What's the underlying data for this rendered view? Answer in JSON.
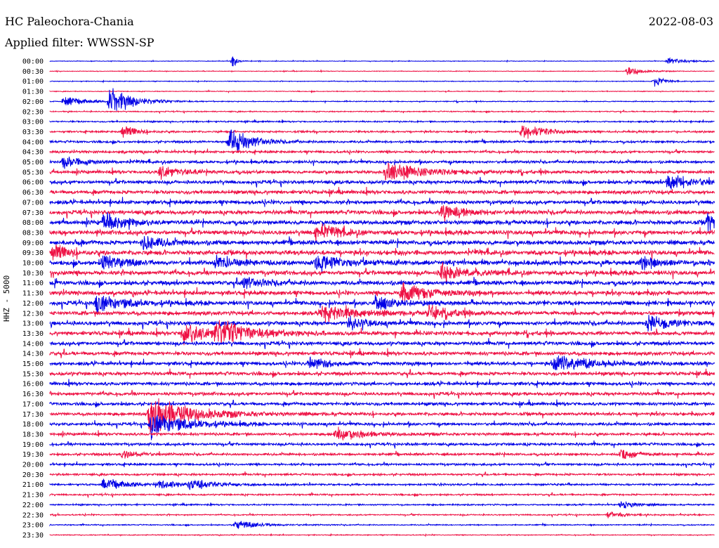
{
  "header": {
    "station": "HC Paleochora-Chania",
    "filter": "Applied filter: WWSSN-SP",
    "date": "2022-08-03",
    "channel_label": "HHZ - 5000"
  },
  "colors": {
    "trace_a": "#0000e6",
    "trace_b": "#ee1144"
  },
  "chart_data": {
    "type": "line",
    "title": "HC Paleochora-Chania",
    "subtitle": "Applied filter: WWSSN-SP",
    "ylabel": "HHZ - 5000",
    "row_labels": [
      "00:00",
      "00:30",
      "01:00",
      "01:30",
      "02:00",
      "02:30",
      "03:00",
      "03:30",
      "04:00",
      "04:30",
      "05:00",
      "05:30",
      "06:00",
      "06:30",
      "07:00",
      "07:30",
      "08:00",
      "08:30",
      "09:00",
      "09:30",
      "10:00",
      "10:30",
      "11:00",
      "11:30",
      "12:00",
      "12:30",
      "13:00",
      "13:30",
      "14:00",
      "14:30",
      "15:00",
      "15:30",
      "16:00",
      "16:30",
      "17:00",
      "17:30",
      "18:00",
      "18:30",
      "19:00",
      "19:30",
      "20:00",
      "20:30",
      "21:00",
      "21:30",
      "22:00",
      "22:30",
      "23:00",
      "23:30"
    ],
    "row_colors": [
      "#0000e6",
      "#ee1144"
    ],
    "noise_level": [
      0.3,
      0.35,
      0.4,
      0.4,
      0.5,
      0.6,
      0.8,
      1.0,
      1.2,
      1.3,
      1.5,
      1.7,
      1.9,
      2.0,
      2.1,
      2.2,
      2.3,
      2.4,
      2.4,
      2.5,
      2.5,
      2.4,
      2.3,
      2.3,
      2.3,
      2.2,
      2.2,
      2.1,
      2.0,
      2.0,
      1.9,
      1.9,
      1.8,
      1.8,
      1.7,
      1.7,
      1.6,
      1.5,
      1.4,
      1.3,
      1.2,
      1.1,
      1.0,
      0.9,
      0.8,
      0.7,
      0.6,
      0.5
    ],
    "events": [
      {
        "row": 4,
        "x": 0.09,
        "amp": 30,
        "dur": 0.03
      },
      {
        "row": 4,
        "x": 0.02,
        "amp": 8,
        "dur": 0.03
      },
      {
        "row": 0,
        "x": 0.275,
        "amp": 16,
        "dur": 0.005
      },
      {
        "row": 2,
        "x": 0.91,
        "amp": 12,
        "dur": 0.01
      },
      {
        "row": 1,
        "x": 0.87,
        "amp": 9,
        "dur": 0.02
      },
      {
        "row": 0,
        "x": 0.93,
        "amp": 5,
        "dur": 0.03
      },
      {
        "row": 8,
        "x": 0.27,
        "amp": 26,
        "dur": 0.03
      },
      {
        "row": 7,
        "x": 0.11,
        "amp": 10,
        "dur": 0.02
      },
      {
        "row": 7,
        "x": 0.71,
        "amp": 14,
        "dur": 0.03
      },
      {
        "row": 10,
        "x": 0.02,
        "amp": 10,
        "dur": 0.03
      },
      {
        "row": 11,
        "x": 0.165,
        "amp": 12,
        "dur": 0.03
      },
      {
        "row": 11,
        "x": 0.505,
        "amp": 18,
        "dur": 0.05
      },
      {
        "row": 12,
        "x": 0.93,
        "amp": 14,
        "dur": 0.04
      },
      {
        "row": 15,
        "x": 0.59,
        "amp": 16,
        "dur": 0.03
      },
      {
        "row": 16,
        "x": 0.08,
        "amp": 16,
        "dur": 0.03
      },
      {
        "row": 16,
        "x": 0.99,
        "amp": 14,
        "dur": 0.02
      },
      {
        "row": 17,
        "x": 0.4,
        "amp": 14,
        "dur": 0.03
      },
      {
        "row": 18,
        "x": 0.14,
        "amp": 12,
        "dur": 0.03
      },
      {
        "row": 19,
        "x": 0.005,
        "amp": 14,
        "dur": 0.02
      },
      {
        "row": 20,
        "x": 0.08,
        "amp": 14,
        "dur": 0.03
      },
      {
        "row": 20,
        "x": 0.4,
        "amp": 16,
        "dur": 0.03
      },
      {
        "row": 20,
        "x": 0.25,
        "amp": 12,
        "dur": 0.03
      },
      {
        "row": 20,
        "x": 0.89,
        "amp": 12,
        "dur": 0.02
      },
      {
        "row": 21,
        "x": 0.59,
        "amp": 16,
        "dur": 0.03
      },
      {
        "row": 22,
        "x": 0.29,
        "amp": 10,
        "dur": 0.03
      },
      {
        "row": 23,
        "x": 0.53,
        "amp": 18,
        "dur": 0.04
      },
      {
        "row": 24,
        "x": 0.07,
        "amp": 16,
        "dur": 0.04
      },
      {
        "row": 24,
        "x": 0.49,
        "amp": 14,
        "dur": 0.03
      },
      {
        "row": 25,
        "x": 0.41,
        "amp": 14,
        "dur": 0.05
      },
      {
        "row": 25,
        "x": 0.57,
        "amp": 12,
        "dur": 0.03
      },
      {
        "row": 26,
        "x": 0.45,
        "amp": 10,
        "dur": 0.03
      },
      {
        "row": 27,
        "x": 0.2,
        "amp": 18,
        "dur": 0.04
      },
      {
        "row": 27,
        "x": 0.25,
        "amp": 20,
        "dur": 0.05
      },
      {
        "row": 26,
        "x": 0.9,
        "amp": 14,
        "dur": 0.03
      },
      {
        "row": 30,
        "x": 0.39,
        "amp": 10,
        "dur": 0.03
      },
      {
        "row": 30,
        "x": 0.76,
        "amp": 14,
        "dur": 0.05
      },
      {
        "row": 35,
        "x": 0.15,
        "amp": 30,
        "dur": 0.06
      },
      {
        "row": 36,
        "x": 0.15,
        "amp": 22,
        "dur": 0.05
      },
      {
        "row": 37,
        "x": 0.43,
        "amp": 10,
        "dur": 0.04
      },
      {
        "row": 39,
        "x": 0.11,
        "amp": 10,
        "dur": 0.02
      },
      {
        "row": 39,
        "x": 0.86,
        "amp": 10,
        "dur": 0.02
      },
      {
        "row": 42,
        "x": 0.08,
        "amp": 10,
        "dur": 0.03
      },
      {
        "row": 42,
        "x": 0.16,
        "amp": 8,
        "dur": 0.03
      },
      {
        "row": 42,
        "x": 0.21,
        "amp": 8,
        "dur": 0.04
      },
      {
        "row": 44,
        "x": 0.86,
        "amp": 8,
        "dur": 0.02
      },
      {
        "row": 45,
        "x": 0.84,
        "amp": 6,
        "dur": 0.02
      },
      {
        "row": 46,
        "x": 0.28,
        "amp": 7,
        "dur": 0.04
      }
    ]
  }
}
